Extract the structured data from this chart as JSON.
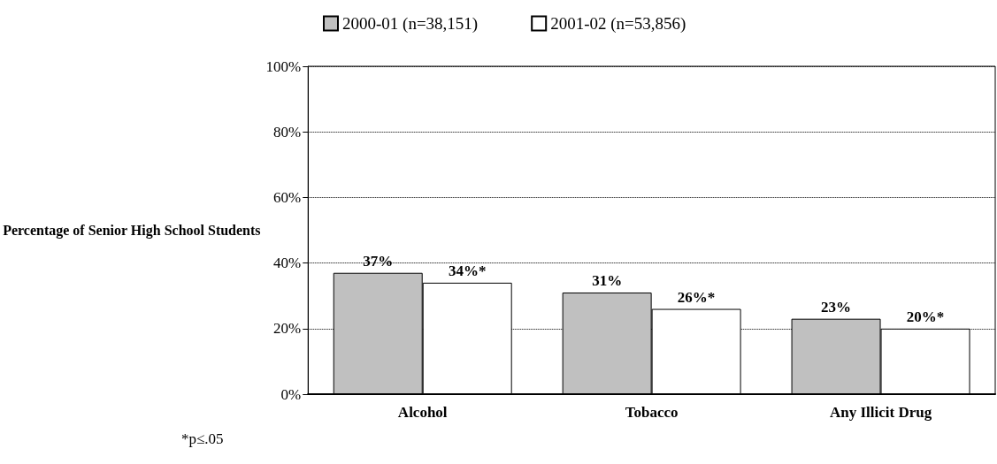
{
  "chart_data": {
    "type": "bar",
    "ylabel": "Percentage of Senior High School Students",
    "categories": [
      "Alcohol",
      "Tobacco",
      "Any Illicit Drug"
    ],
    "series": [
      {
        "name": "2000-01 (n=38,151)",
        "color": "#c0c0c0",
        "values": [
          37,
          31,
          23
        ],
        "value_labels": [
          "37%",
          "31%",
          "23%"
        ]
      },
      {
        "name": "2001-02 (n=53,856)",
        "color": "#ffffff",
        "values": [
          34,
          26,
          20
        ],
        "value_labels": [
          "34%*",
          "26%*",
          "20%*"
        ]
      }
    ],
    "ylim": [
      0,
      100
    ],
    "yticks": [
      {
        "value": 0,
        "label": "0%"
      },
      {
        "value": 20,
        "label": "20%"
      },
      {
        "value": 40,
        "label": "40%"
      },
      {
        "value": 60,
        "label": "60%"
      },
      {
        "value": 80,
        "label": "80%"
      },
      {
        "value": 100,
        "label": "100%"
      }
    ],
    "grid": "y",
    "legend": "top",
    "annotations": [
      "*p≤.05"
    ]
  }
}
